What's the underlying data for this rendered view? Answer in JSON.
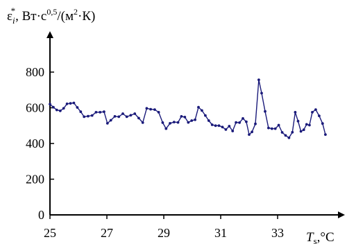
{
  "chart_data": {
    "type": "line",
    "ylabel": {
      "main": "ε",
      "superscript": "*",
      "subscript": "i",
      "unit_prefix": ", Вт·с",
      "unit_exp1": "0,5",
      "unit_mid": "/(м",
      "unit_exp2": "2",
      "unit_end": "·К)"
    },
    "xlabel": {
      "main": "T",
      "subscript": "s",
      "unit": ",°C"
    },
    "xlim": [
      25,
      35.3
    ],
    "ylim": [
      0,
      950
    ],
    "x_ticks": [
      25,
      27,
      29,
      31,
      33
    ],
    "y_ticks": [
      0,
      200,
      400,
      600,
      800
    ],
    "x_tick_labels": [
      "25",
      "27",
      "29",
      "31",
      "33"
    ],
    "y_tick_labels": [
      "0",
      "200",
      "400",
      "600",
      "800"
    ],
    "grid": false,
    "series": [
      {
        "color": "#1a1a7a",
        "marker": "dot",
        "points": [
          [
            25.0,
            620
          ],
          [
            25.12,
            603
          ],
          [
            25.24,
            588
          ],
          [
            25.36,
            583
          ],
          [
            25.48,
            597
          ],
          [
            25.6,
            622
          ],
          [
            25.72,
            625
          ],
          [
            25.84,
            627
          ],
          [
            25.96,
            602
          ],
          [
            26.08,
            578
          ],
          [
            26.2,
            550
          ],
          [
            26.34,
            553
          ],
          [
            26.48,
            557
          ],
          [
            26.62,
            575
          ],
          [
            26.76,
            575
          ],
          [
            26.9,
            578
          ],
          [
            27.02,
            513
          ],
          [
            27.14,
            530
          ],
          [
            27.28,
            552
          ],
          [
            27.42,
            550
          ],
          [
            27.56,
            567
          ],
          [
            27.7,
            550
          ],
          [
            27.84,
            558
          ],
          [
            27.98,
            567
          ],
          [
            28.12,
            542
          ],
          [
            28.26,
            517
          ],
          [
            28.4,
            597
          ],
          [
            28.54,
            592
          ],
          [
            28.68,
            590
          ],
          [
            28.82,
            575
          ],
          [
            28.96,
            517
          ],
          [
            29.08,
            483
          ],
          [
            29.22,
            513
          ],
          [
            29.36,
            520
          ],
          [
            29.5,
            518
          ],
          [
            29.62,
            552
          ],
          [
            29.74,
            548
          ],
          [
            29.86,
            518
          ],
          [
            29.98,
            528
          ],
          [
            30.1,
            533
          ],
          [
            30.22,
            603
          ],
          [
            30.34,
            585
          ],
          [
            30.46,
            557
          ],
          [
            30.58,
            528
          ],
          [
            30.7,
            505
          ],
          [
            30.82,
            500
          ],
          [
            30.94,
            500
          ],
          [
            31.06,
            492
          ],
          [
            31.18,
            478
          ],
          [
            31.3,
            497
          ],
          [
            31.42,
            470
          ],
          [
            31.54,
            518
          ],
          [
            31.66,
            517
          ],
          [
            31.78,
            540
          ],
          [
            31.9,
            522
          ],
          [
            32.0,
            450
          ],
          [
            32.1,
            465
          ],
          [
            32.22,
            510
          ],
          [
            32.34,
            757
          ],
          [
            32.44,
            682
          ],
          [
            32.56,
            580
          ],
          [
            32.68,
            487
          ],
          [
            32.8,
            483
          ],
          [
            32.92,
            483
          ],
          [
            33.04,
            503
          ],
          [
            33.16,
            462
          ],
          [
            33.28,
            445
          ],
          [
            33.4,
            432
          ],
          [
            33.52,
            463
          ],
          [
            33.62,
            575
          ],
          [
            33.72,
            525
          ],
          [
            33.82,
            468
          ],
          [
            33.92,
            477
          ],
          [
            34.02,
            507
          ],
          [
            34.12,
            503
          ],
          [
            34.22,
            575
          ],
          [
            34.34,
            590
          ],
          [
            34.46,
            555
          ],
          [
            34.58,
            512
          ],
          [
            34.68,
            450
          ]
        ]
      }
    ]
  }
}
